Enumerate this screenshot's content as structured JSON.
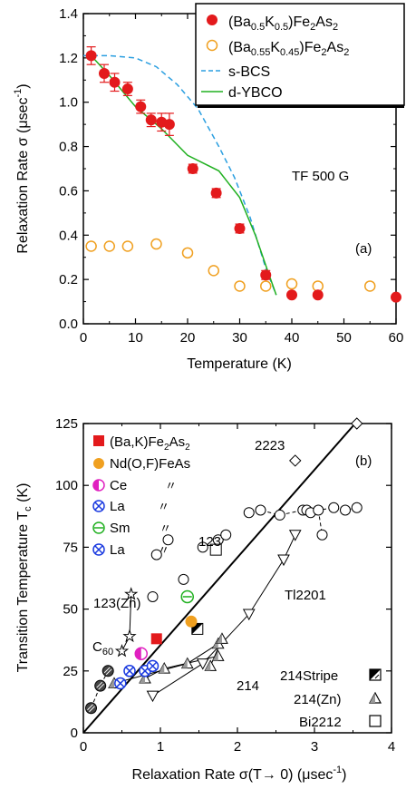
{
  "chart_data": [
    {
      "type": "scatter",
      "panel_label": "(a)",
      "annotation": "TF 500 G",
      "xlabel": "Temperature (K)",
      "ylabel": "Relaxation Rate σ (μsec-1)",
      "ylabel_main": "Relaxation Rate σ (μsec",
      "ylabel_sup": "-1",
      "ylabel_close": ")",
      "xlim": [
        0,
        60
      ],
      "ylim": [
        0,
        1.4
      ],
      "xticks": [
        0,
        10,
        20,
        30,
        40,
        50,
        60
      ],
      "yticks": [
        0.0,
        0.2,
        0.4,
        0.6,
        0.8,
        1.0,
        1.2,
        1.4
      ],
      "ytick_labels": [
        "0.0",
        "0.2",
        "0.4",
        "0.6",
        "0.8",
        "1.0",
        "1.2",
        "1.4"
      ],
      "legend_position": "top-right",
      "series": [
        {
          "name": "(Ba0.5K0.5)Fe2As2",
          "marker": "filled-circle",
          "color": "#e31a1c",
          "x": [
            1.5,
            4,
            6,
            8.5,
            11,
            13,
            15,
            16.5,
            21,
            25.5,
            30,
            35,
            40,
            45,
            60
          ],
          "y": [
            1.21,
            1.13,
            1.09,
            1.06,
            0.98,
            0.92,
            0.91,
            0.9,
            0.7,
            0.59,
            0.43,
            0.22,
            0.13,
            0.13,
            0.12
          ],
          "err": [
            0.04,
            0.04,
            0.04,
            0.03,
            0.03,
            0.03,
            0.04,
            0.05,
            0.02,
            0.02,
            0.02,
            0.02,
            0.01,
            0.01,
            0.01
          ]
        },
        {
          "name": "(Ba0.55K0.45)Fe2As2",
          "marker": "open-circle",
          "color": "#f0a020",
          "x": [
            1.5,
            5,
            8.5,
            14,
            20,
            25,
            30,
            35,
            40,
            45,
            55
          ],
          "y": [
            0.35,
            0.35,
            0.35,
            0.36,
            0.32,
            0.24,
            0.17,
            0.17,
            0.18,
            0.17,
            0.17
          ]
        },
        {
          "name": "s-BCS",
          "style": "dashed",
          "color": "#2b9fe0",
          "x": [
            0,
            5,
            10,
            14,
            18,
            22,
            26,
            29,
            32,
            35,
            37
          ],
          "y": [
            1.21,
            1.21,
            1.2,
            1.16,
            1.08,
            0.97,
            0.8,
            0.66,
            0.48,
            0.25,
            0.13
          ]
        },
        {
          "name": "d-YBCO",
          "style": "solid",
          "color": "#20b020",
          "x": [
            1.5,
            5,
            10,
            15,
            20,
            26,
            30,
            33,
            35.5,
            37
          ],
          "y": [
            1.21,
            1.12,
            0.98,
            0.88,
            0.76,
            0.69,
            0.57,
            0.4,
            0.23,
            0.13
          ]
        }
      ]
    },
    {
      "type": "scatter",
      "panel_label": "(b)",
      "xlabel": "Relaxation Rate σ(T→ 0) (μsec-1)",
      "xlabel_main": "Relaxation Rate σ(T→ 0) (μsec",
      "xlabel_sup": "-1",
      "xlabel_close": ")",
      "ylabel": "Transition Temperature Tc (K)",
      "ylabel_main": "Transition Temperature T",
      "ylabel_sub": "c",
      "ylabel_close": " (K)",
      "xlim": [
        0,
        4
      ],
      "ylim": [
        0,
        125
      ],
      "xticks": [
        0,
        1,
        2,
        3,
        4
      ],
      "yticks": [
        0,
        25,
        50,
        75,
        100,
        125
      ],
      "legend_position": "top-left",
      "legend": [
        {
          "label": "(Ba,K)Fe2As2",
          "color": "#e31a1c",
          "marker": "filled-square"
        },
        {
          "label": "Nd(O,F)FeAs",
          "color": "#f0a020",
          "marker": "filled-circle"
        },
        {
          "label": "Ce",
          "color": "#e020c0",
          "marker": "half-circle",
          "ditto": "〃"
        },
        {
          "label": "La",
          "color": "#1a3ae0",
          "marker": "circle-x",
          "ditto": "〃"
        },
        {
          "label": "Sm",
          "color": "#20b020",
          "marker": "circle-minus",
          "ditto": "〃"
        },
        {
          "label": "La",
          "color": "#1a3ae0",
          "marker": "circle-x",
          "ditto": "〃"
        }
      ],
      "lower_legend": [
        {
          "label": "214Stripe",
          "marker": "half-square"
        },
        {
          "label": "214(Zn)",
          "marker": "triangle"
        },
        {
          "label": "Bi2212",
          "marker": "open-square"
        }
      ],
      "annotations": [
        "2223",
        "123",
        "123(Zn)",
        "Tl2201",
        "C60",
        "214"
      ],
      "uemura_line": {
        "x": [
          0,
          3.5
        ],
        "y": [
          0,
          124
        ]
      },
      "series": [
        {
          "name": "2223",
          "marker": "open-diamond",
          "x": [
            3.55,
            2.75
          ],
          "y": [
            125,
            110
          ]
        },
        {
          "name": "123",
          "marker": "open-circle",
          "x": [
            1.3,
            1.55,
            1.75,
            1.85,
            0.95,
            1.1,
            0.9
          ],
          "y": [
            62,
            75,
            78,
            80,
            72,
            78,
            55
          ]
        },
        {
          "name": "123-dashed",
          "marker": "open-circle",
          "x": [
            2.15,
            2.3,
            2.55,
            2.85,
            2.9,
            2.95,
            3.05,
            3.1,
            3.25,
            3.4,
            3.55
          ],
          "y": [
            89,
            90,
            88,
            90,
            90,
            89,
            90,
            80,
            91,
            90,
            91
          ]
        },
        {
          "name": "123(Zn)",
          "marker": "star",
          "x": [
            0.5,
            0.6,
            0.62
          ],
          "y": [
            33,
            39,
            56
          ]
        },
        {
          "name": "Tl2201",
          "marker": "open-triangle-down",
          "x": [
            0.9,
            1.55,
            2.15,
            2.6,
            2.75
          ],
          "y": [
            15,
            28,
            48,
            70,
            80
          ]
        },
        {
          "name": "C60",
          "marker": "hatched-circle",
          "x": [
            0.1,
            0.22,
            0.32
          ],
          "y": [
            10,
            19,
            25
          ]
        },
        {
          "name": "214(Zn)",
          "marker": "open-triangle",
          "x": [
            0.4,
            0.8,
            1.05,
            1.35,
            1.65,
            1.75,
            1.75,
            1.8
          ],
          "y": [
            20,
            22,
            26,
            28,
            27,
            31,
            36,
            38
          ]
        },
        {
          "name": "214Stripe",
          "marker": "half-square",
          "x": [
            1.48
          ],
          "y": [
            42
          ]
        },
        {
          "name": "Bi2212",
          "marker": "open-square",
          "x": [
            1.72
          ],
          "y": [
            74
          ]
        },
        {
          "name": "(Ba,K)Fe2As2",
          "marker": "filled-square",
          "x": [
            0.95
          ],
          "y": [
            38
          ]
        },
        {
          "name": "Nd(O,F)FeAs",
          "marker": "filled-circle",
          "x": [
            1.4
          ],
          "y": [
            45
          ]
        },
        {
          "name": "Ce",
          "marker": "half-circle",
          "x": [
            0.75
          ],
          "y": [
            32
          ]
        },
        {
          "name": "La",
          "marker": "circle-x",
          "x": [
            0.48,
            0.6,
            0.8,
            0.9
          ],
          "y": [
            20,
            25,
            25,
            27
          ]
        },
        {
          "name": "Sm",
          "marker": "circle-minus",
          "x": [
            1.35
          ],
          "y": [
            55
          ]
        }
      ]
    }
  ]
}
